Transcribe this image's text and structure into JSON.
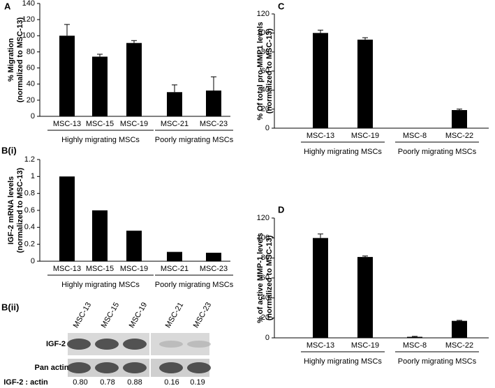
{
  "chart_data": [
    {
      "type": "bar",
      "panel": "A",
      "ylabel": [
        "% Migration",
        "(normalized to MSC-13)"
      ],
      "categories": [
        "MSC-13",
        "MSC-15",
        "MSC-19",
        "MSC-21",
        "MSC-23"
      ],
      "values": [
        100,
        74,
        91,
        30,
        32
      ],
      "errors": [
        14,
        3,
        3,
        9,
        17
      ],
      "category_groups": [
        "Highly migrating MSCs",
        "Highly migrating MSCs",
        "Highly migrating MSCs",
        "Poorly migrating MSCs",
        "Poorly migrating MSCs"
      ],
      "color": "#000000",
      "ylim": [
        0,
        140
      ],
      "yticks": [
        0,
        20,
        40,
        60,
        80,
        100,
        120,
        140
      ],
      "grid": false
    },
    {
      "type": "bar",
      "panel": "B(i)",
      "ylabel": [
        "IGF-2 mRNA levels",
        "(normalized to MSC-13)"
      ],
      "categories": [
        "MSC-13",
        "MSC-15",
        "MSC-19",
        "MSC-21",
        "MSC-23"
      ],
      "values": [
        1,
        0.6,
        0.36,
        0.11,
        0.1
      ],
      "category_groups": [
        "Highly migrating MSCs",
        "Highly migrating MSCs",
        "Highly migrating MSCs",
        "Poorly migrating MSCs",
        "Poorly migrating MSCs"
      ],
      "color": "#000000",
      "ylim": [
        0,
        1.2
      ],
      "yticks": [
        0,
        0.2,
        0.4,
        0.6,
        0.8,
        1,
        1.2
      ],
      "grid": false
    },
    {
      "type": "blot",
      "panel": "B(ii)",
      "lanes": [
        "MSC-13",
        "MSC-15",
        "MSC-19",
        "MSC-21",
        "MSC-23"
      ],
      "rows": [
        "IGF-2",
        "Pan actin"
      ],
      "ratio_label": "IGF-2 : actin",
      "ratios": [
        "0.80",
        "0.78",
        "0.88",
        "0.16",
        "0.19"
      ]
    },
    {
      "type": "bar",
      "panel": "C",
      "ylabel": [
        "% Of total pro-MMP1 levels",
        "(normalized to MSC-13)"
      ],
      "categories": [
        "MSC-13",
        "MSC-19",
        "MSC-8",
        "MSC-22"
      ],
      "values": [
        100,
        93,
        0,
        19
      ],
      "errors": [
        3,
        2,
        0,
        1
      ],
      "category_groups": [
        "Highly migrating MSCs",
        "Highly migrating MSCs",
        "Poorly migrating MSCs",
        "Poorly migrating MSCs"
      ],
      "color": "#000000",
      "ylim": [
        0,
        120
      ],
      "yticks": [
        0,
        20,
        40,
        60,
        80,
        100,
        120
      ],
      "grid": false
    },
    {
      "type": "bar",
      "panel": "D",
      "ylabel": [
        "% of active MMP-1 levels",
        "(normalized to MSC-13)"
      ],
      "categories": [
        "MSC-13",
        "MSC-19",
        "MSC-8",
        "MSC-22"
      ],
      "values": [
        100,
        81,
        1,
        17
      ],
      "errors": [
        4,
        1,
        0.5,
        0.5
      ],
      "category_groups": [
        "Highly migrating MSCs",
        "Highly migrating MSCs",
        "Poorly migrating MSCs",
        "Poorly migrating MSCs"
      ],
      "color": "#000000",
      "ylim": [
        0,
        120
      ],
      "yticks": [
        0,
        20,
        40,
        60,
        80,
        100,
        120
      ],
      "grid": false
    }
  ]
}
